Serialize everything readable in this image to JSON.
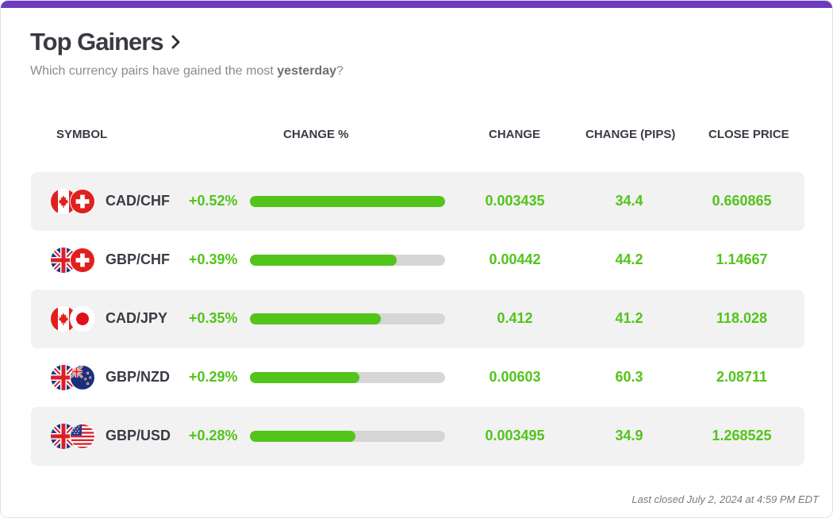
{
  "header": {
    "title": "Top Gainers",
    "subtitle_prefix": "Which currency pairs have gained the most ",
    "subtitle_emphasis": "yesterday",
    "subtitle_suffix": "?"
  },
  "colors": {
    "accent": "#6c3bbd",
    "positive": "#52c41a",
    "bar_track": "#d6d6d6",
    "row_shade": "#f2f2f2"
  },
  "columns": {
    "symbol": "SYMBOL",
    "change_pct": "CHANGE %",
    "change": "CHANGE",
    "change_pips": "CHANGE (PIPS)",
    "close_price": "CLOSE PRICE"
  },
  "rows": [
    {
      "pair": "CAD/CHF",
      "base_flag": "canada-flag-icon",
      "quote_flag": "switzerland-flag-icon",
      "change_pct": "+0.52%",
      "bar_fraction": 1.0,
      "change": "0.003435",
      "change_pips": "34.4",
      "close_price": "0.660865"
    },
    {
      "pair": "GBP/CHF",
      "base_flag": "uk-flag-icon",
      "quote_flag": "switzerland-flag-icon",
      "change_pct": "+0.39%",
      "bar_fraction": 0.75,
      "change": "0.00442",
      "change_pips": "44.2",
      "close_price": "1.14667"
    },
    {
      "pair": "CAD/JPY",
      "base_flag": "canada-flag-icon",
      "quote_flag": "japan-flag-icon",
      "change_pct": "+0.35%",
      "bar_fraction": 0.67,
      "change": "0.412",
      "change_pips": "41.2",
      "close_price": "118.028"
    },
    {
      "pair": "GBP/NZD",
      "base_flag": "uk-flag-icon",
      "quote_flag": "new-zealand-flag-icon",
      "change_pct": "+0.29%",
      "bar_fraction": 0.56,
      "change": "0.00603",
      "change_pips": "60.3",
      "close_price": "2.08711"
    },
    {
      "pair": "GBP/USD",
      "base_flag": "uk-flag-icon",
      "quote_flag": "usa-flag-icon",
      "change_pct": "+0.28%",
      "bar_fraction": 0.54,
      "change": "0.003495",
      "change_pips": "34.9",
      "close_price": "1.268525"
    }
  ],
  "footer": {
    "last_closed": "Last closed July 2, 2024 at 4:59 PM EDT"
  }
}
